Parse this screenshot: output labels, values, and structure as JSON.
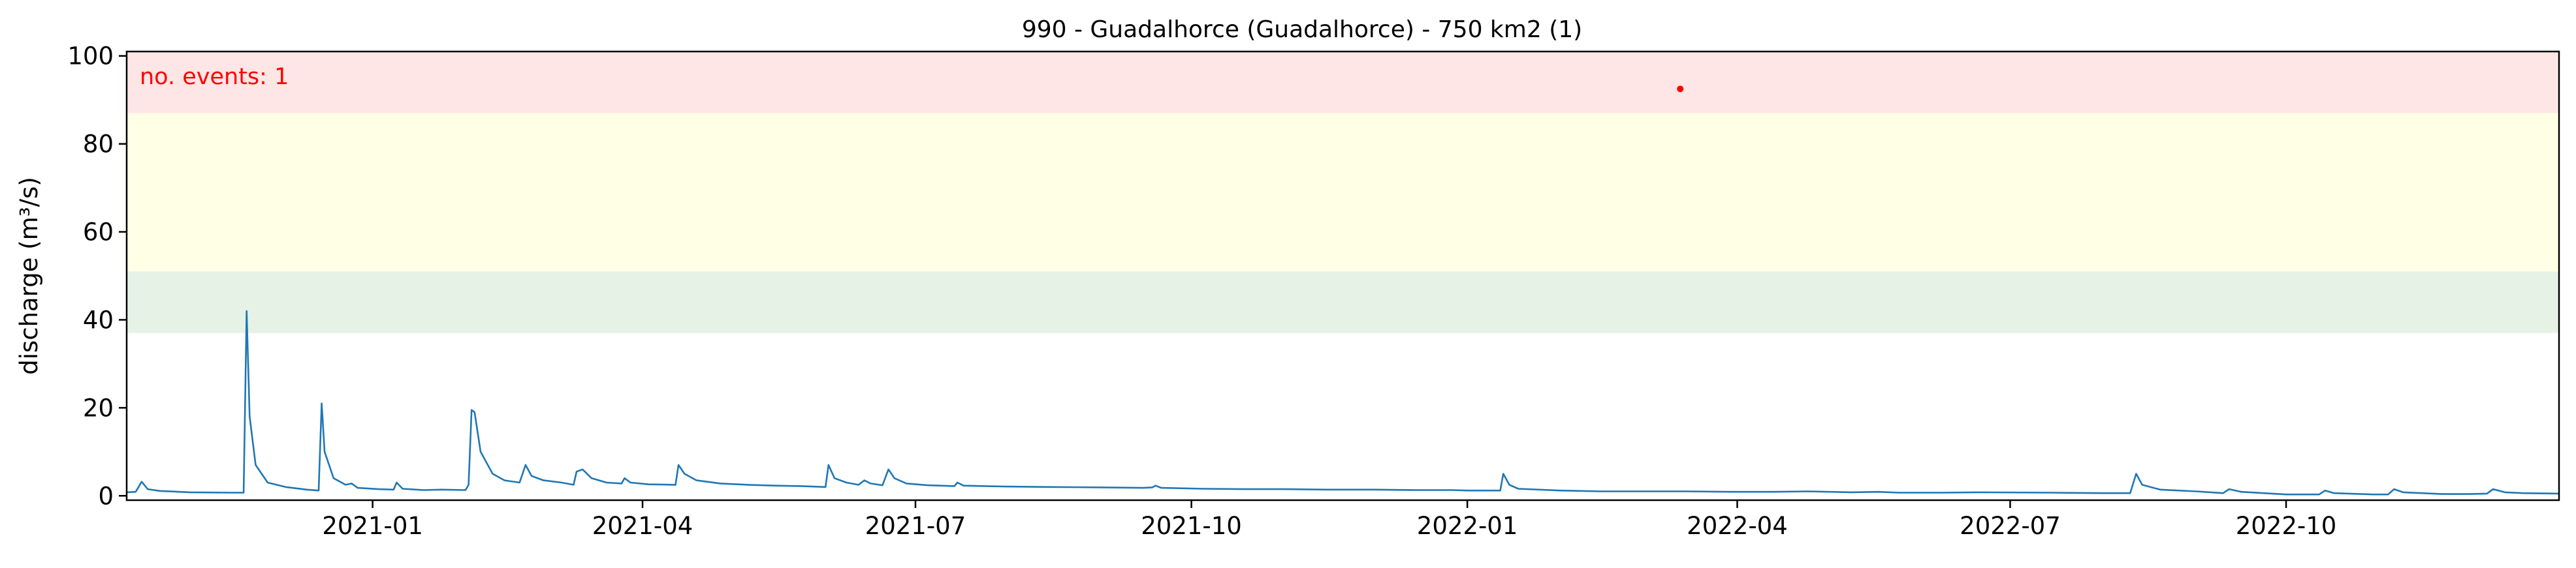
{
  "chart_data": {
    "type": "line",
    "title": "990 - Guadalhorce (Guadalhorce) - 750 km2 (1)",
    "xlabel": "",
    "ylabel": "discharge (m³/s)",
    "xlim": [
      "2020-10-11",
      "2022-12-31"
    ],
    "ylim": [
      -1,
      101
    ],
    "grid": false,
    "x_ticks": [
      {
        "date": "2021-01-01",
        "label": "2021-01"
      },
      {
        "date": "2021-04-01",
        "label": "2021-04"
      },
      {
        "date": "2021-07-01",
        "label": "2021-07"
      },
      {
        "date": "2021-10-01",
        "label": "2021-10"
      },
      {
        "date": "2022-01-01",
        "label": "2022-01"
      },
      {
        "date": "2022-04-01",
        "label": "2022-04"
      },
      {
        "date": "2022-07-01",
        "label": "2022-07"
      },
      {
        "date": "2022-10-01",
        "label": "2022-10"
      }
    ],
    "y_ticks": [
      0,
      20,
      40,
      60,
      80,
      100
    ],
    "bands": [
      {
        "from": 37,
        "to": 51,
        "color": "#e6f2e6"
      },
      {
        "from": 51,
        "to": 87,
        "color": "#ffffe6"
      },
      {
        "from": 87,
        "to": 101,
        "color": "#ffe6e6"
      }
    ],
    "events_label": "no. events: 1",
    "events_label_color": "#ff0000",
    "series": [
      {
        "color": "#1f77b4",
        "points": [
          [
            "2020-10-11",
            0.8
          ],
          [
            "2020-10-14",
            0.9
          ],
          [
            "2020-10-16",
            3.2
          ],
          [
            "2020-10-18",
            1.5
          ],
          [
            "2020-10-22",
            1.1
          ],
          [
            "2020-11-01",
            0.8
          ],
          [
            "2020-11-16",
            0.7
          ],
          [
            "2020-11-19",
            0.7
          ],
          [
            "2020-11-20",
            42.0
          ],
          [
            "2020-11-21",
            18.0
          ],
          [
            "2020-11-23",
            7.0
          ],
          [
            "2020-11-27",
            3.0
          ],
          [
            "2020-12-03",
            2.0
          ],
          [
            "2020-12-10",
            1.4
          ],
          [
            "2020-12-14",
            1.2
          ],
          [
            "2020-12-15",
            21.0
          ],
          [
            "2020-12-16",
            10.0
          ],
          [
            "2020-12-19",
            4.0
          ],
          [
            "2020-12-23",
            2.5
          ],
          [
            "2020-12-25",
            2.8
          ],
          [
            "2020-12-27",
            1.8
          ],
          [
            "2021-01-03",
            1.5
          ],
          [
            "2021-01-08",
            1.4
          ],
          [
            "2021-01-09",
            3.0
          ],
          [
            "2021-01-11",
            1.6
          ],
          [
            "2021-01-18",
            1.3
          ],
          [
            "2021-01-24",
            1.4
          ],
          [
            "2021-02-01",
            1.3
          ],
          [
            "2021-02-02",
            2.5
          ],
          [
            "2021-02-03",
            19.5
          ],
          [
            "2021-02-04",
            19.0
          ],
          [
            "2021-02-06",
            10.0
          ],
          [
            "2021-02-10",
            5.0
          ],
          [
            "2021-02-14",
            3.5
          ],
          [
            "2021-02-19",
            3.0
          ],
          [
            "2021-02-21",
            7.0
          ],
          [
            "2021-02-23",
            4.5
          ],
          [
            "2021-02-27",
            3.5
          ],
          [
            "2021-03-05",
            3.0
          ],
          [
            "2021-03-09",
            2.5
          ],
          [
            "2021-03-10",
            5.5
          ],
          [
            "2021-03-12",
            6.0
          ],
          [
            "2021-03-15",
            4.0
          ],
          [
            "2021-03-20",
            3.0
          ],
          [
            "2021-03-25",
            2.8
          ],
          [
            "2021-03-26",
            4.0
          ],
          [
            "2021-03-28",
            3.0
          ],
          [
            "2021-04-03",
            2.6
          ],
          [
            "2021-04-12",
            2.5
          ],
          [
            "2021-04-13",
            7.0
          ],
          [
            "2021-04-15",
            5.0
          ],
          [
            "2021-04-19",
            3.5
          ],
          [
            "2021-04-27",
            2.8
          ],
          [
            "2021-05-06",
            2.5
          ],
          [
            "2021-05-15",
            2.3
          ],
          [
            "2021-05-24",
            2.2
          ],
          [
            "2021-06-01",
            2.0
          ],
          [
            "2021-06-02",
            7.0
          ],
          [
            "2021-06-04",
            4.0
          ],
          [
            "2021-06-08",
            3.0
          ],
          [
            "2021-06-12",
            2.5
          ],
          [
            "2021-06-14",
            3.5
          ],
          [
            "2021-06-16",
            2.8
          ],
          [
            "2021-06-20",
            2.4
          ],
          [
            "2021-06-22",
            6.0
          ],
          [
            "2021-06-24",
            4.0
          ],
          [
            "2021-06-28",
            2.8
          ],
          [
            "2021-07-05",
            2.4
          ],
          [
            "2021-07-14",
            2.2
          ],
          [
            "2021-07-15",
            3.0
          ],
          [
            "2021-07-17",
            2.3
          ],
          [
            "2021-07-31",
            2.1
          ],
          [
            "2021-08-15",
            2.0
          ],
          [
            "2021-09-01",
            1.9
          ],
          [
            "2021-09-15",
            1.8
          ],
          [
            "2021-09-18",
            1.9
          ],
          [
            "2021-09-19",
            2.3
          ],
          [
            "2021-09-21",
            1.8
          ],
          [
            "2021-10-05",
            1.6
          ],
          [
            "2021-10-20",
            1.5
          ],
          [
            "2021-11-01",
            1.5
          ],
          [
            "2021-11-15",
            1.4
          ],
          [
            "2021-12-01",
            1.4
          ],
          [
            "2021-12-15",
            1.3
          ],
          [
            "2021-12-27",
            1.3
          ],
          [
            "2022-01-01",
            1.2
          ],
          [
            "2022-01-12",
            1.2
          ],
          [
            "2022-01-13",
            5.0
          ],
          [
            "2022-01-15",
            2.5
          ],
          [
            "2022-01-18",
            1.6
          ],
          [
            "2022-02-01",
            1.2
          ],
          [
            "2022-02-15",
            1.0
          ],
          [
            "2022-03-01",
            1.0
          ],
          [
            "2022-03-15",
            1.0
          ],
          [
            "2022-03-30",
            0.9
          ],
          [
            "2022-04-13",
            0.9
          ],
          [
            "2022-04-25",
            1.0
          ],
          [
            "2022-05-09",
            0.8
          ],
          [
            "2022-05-18",
            0.9
          ],
          [
            "2022-05-25",
            0.7
          ],
          [
            "2022-06-08",
            0.7
          ],
          [
            "2022-06-20",
            0.8
          ],
          [
            "2022-07-15",
            0.7
          ],
          [
            "2022-08-01",
            0.6
          ],
          [
            "2022-08-10",
            0.6
          ],
          [
            "2022-08-12",
            5.0
          ],
          [
            "2022-08-14",
            2.5
          ],
          [
            "2022-08-20",
            1.4
          ],
          [
            "2022-09-01",
            1.0
          ],
          [
            "2022-09-10",
            0.6
          ],
          [
            "2022-09-12",
            1.5
          ],
          [
            "2022-09-16",
            0.9
          ],
          [
            "2022-10-01",
            0.3
          ],
          [
            "2022-10-12",
            0.3
          ],
          [
            "2022-10-14",
            1.2
          ],
          [
            "2022-10-17",
            0.6
          ],
          [
            "2022-10-30",
            0.3
          ],
          [
            "2022-11-04",
            0.3
          ],
          [
            "2022-11-06",
            1.5
          ],
          [
            "2022-11-09",
            0.8
          ],
          [
            "2022-11-22",
            0.4
          ],
          [
            "2022-12-01",
            0.4
          ],
          [
            "2022-12-07",
            0.5
          ],
          [
            "2022-12-09",
            1.5
          ],
          [
            "2022-12-13",
            0.8
          ],
          [
            "2022-12-19",
            0.6
          ],
          [
            "2022-12-31",
            0.5
          ]
        ]
      }
    ],
    "event_points": [
      {
        "date": "2022-03-13",
        "value": 92.5,
        "color": "#ff0000"
      }
    ]
  }
}
